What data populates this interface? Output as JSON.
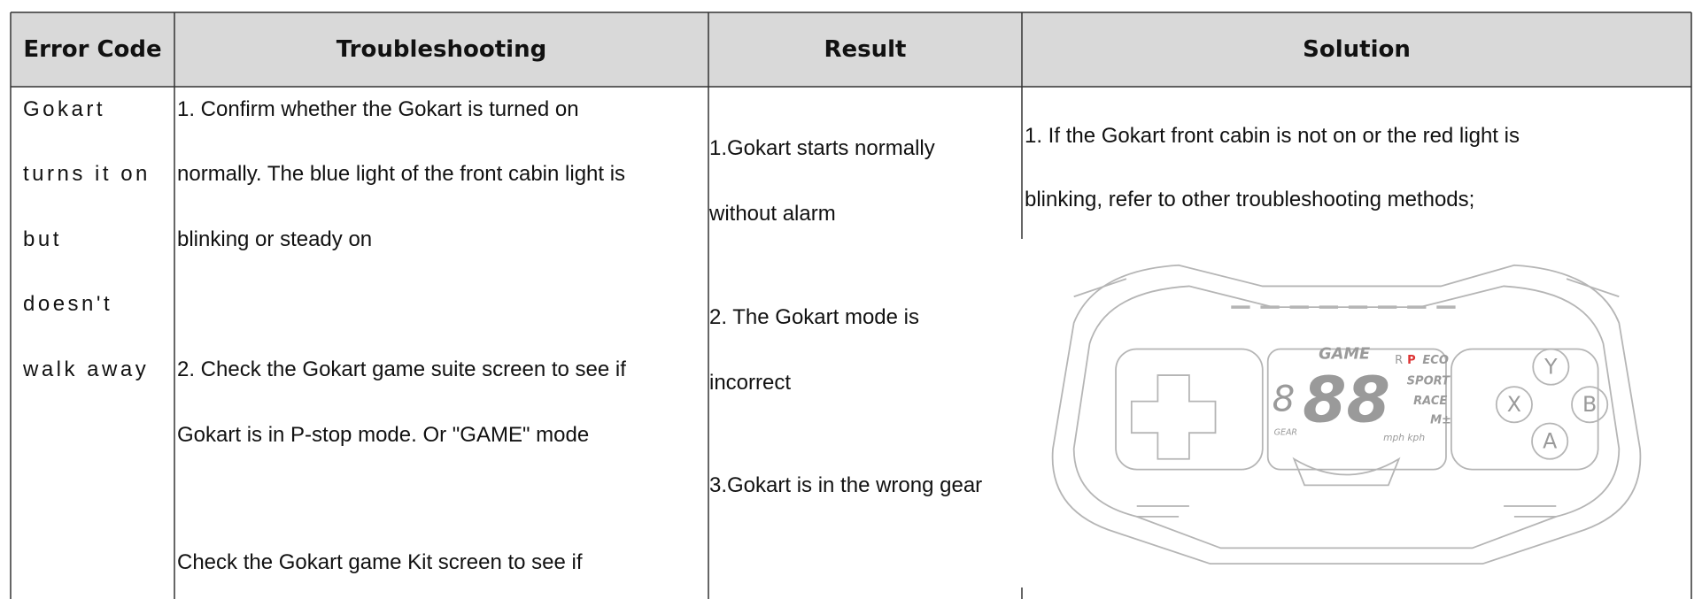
{
  "table": {
    "headers": [
      "Error Code",
      "Troubleshooting",
      "Result",
      "Solution"
    ],
    "rows": [
      {
        "error_code": [
          "Gokart",
          "turns it on",
          "but",
          "doesn't",
          "walk away"
        ],
        "troubleshooting": [
          "1. Confirm whether the Gokart is turned on",
          "normally. The blue light of the front cabin light is",
          "blinking or steady on",
          "2. Check the Gokart game suite screen to see if",
          "Gokart is in P-stop mode. Or \"GAME\" mode",
          "Check the Gokart game Kit screen to see if"
        ],
        "result": [
          "1.Gokart starts normally",
          "without alarm",
          "2. The Gokart mode is",
          "incorrect",
          "3.Gokart is in the wrong gear"
        ],
        "solution": {
          "text": [
            "1. If the Gokart front cabin is not on or the red light is",
            "blinking, refer to other troubleshooting methods;"
          ],
          "image_labels": {
            "mode": "GAME",
            "reverse": "R",
            "park": "P",
            "eco": "ECO",
            "sport": "SPORT",
            "race": "RACE",
            "manual": "M±",
            "speed": "88",
            "gear": "8",
            "gear_label": "GEAR",
            "units": "mph kph",
            "y": "Y",
            "x": "X",
            "b": "B",
            "a": "A"
          }
        }
      }
    ]
  }
}
